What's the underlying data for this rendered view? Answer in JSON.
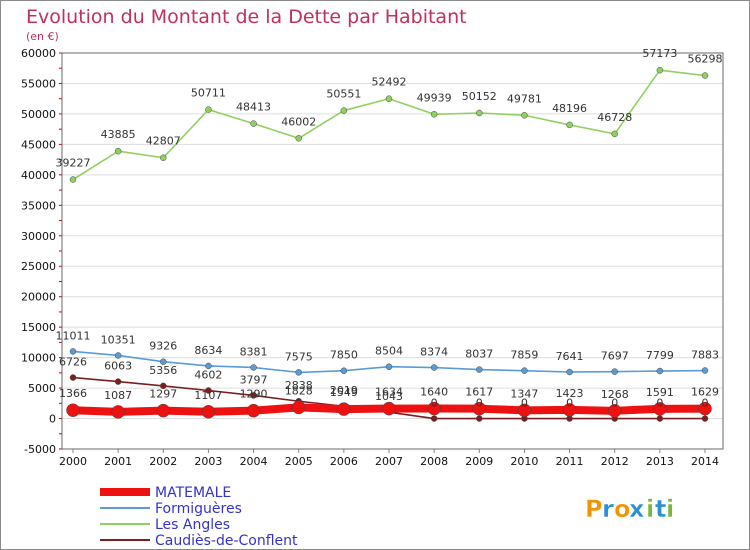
{
  "header": {
    "title": "Evolution du Montant de la Dette par Habitant",
    "subtitle": "(en €)"
  },
  "logo": {
    "text": "Proxiti",
    "letters": [
      "P",
      "r",
      "o",
      "x",
      "i",
      "t",
      "i"
    ],
    "colors": [
      "#f29400",
      "#2a8fd6",
      "#f29400",
      "#2a8fd6",
      "#78b83c",
      "#2a8fd6",
      "#78b83c"
    ]
  },
  "colors": {
    "frame": "#6a6a6a",
    "grid": "#dddddd",
    "tickmark": "#cc0000",
    "plot_bg": "#ffffff"
  },
  "chart_data": {
    "type": "line",
    "title": "Evolution du Montant de la Dette par Habitant",
    "subtitle": "(en €)",
    "x": [
      2000,
      2001,
      2002,
      2003,
      2004,
      2005,
      2006,
      2007,
      2008,
      2009,
      2010,
      2011,
      2012,
      2013,
      2014
    ],
    "ylim": [
      -5000,
      60000
    ],
    "yticks": [
      -5000,
      0,
      5000,
      10000,
      15000,
      20000,
      25000,
      30000,
      35000,
      40000,
      45000,
      50000,
      55000,
      60000
    ],
    "grid": true,
    "legend_position": "bottom-left",
    "series": [
      {
        "name": "Les Angles",
        "color": "#90d060",
        "values": [
          39227,
          43885,
          42807,
          50711,
          48413,
          46002,
          50551,
          52492,
          49939,
          50152,
          49781,
          48196,
          46728,
          57173,
          56298
        ],
        "labels": [
          "39227",
          "43885",
          "42807",
          "50711",
          "48413",
          "46002",
          "50551",
          "52492",
          "49939",
          "50152",
          "49781",
          "48196",
          "46728",
          "57173",
          "56298"
        ]
      },
      {
        "name": "Formiguères",
        "color": "#5b9bd5",
        "values": [
          11011,
          10351,
          9326,
          8634,
          8381,
          7575,
          7850,
          8504,
          8374,
          8037,
          7859,
          7641,
          7697,
          7799,
          7883
        ],
        "labels": [
          "11011",
          "10351",
          "9326",
          "8634",
          "8381",
          "7575",
          "7850",
          "8504",
          "8374",
          "8037",
          "7859",
          "7641",
          "7697",
          "7799",
          "7883"
        ]
      },
      {
        "name": "Caudiès-de-Conflent",
        "color": "#7a1f1f",
        "values": [
          6726,
          6063,
          5356,
          4602,
          3797,
          2838,
          2019,
          1043,
          0,
          0,
          0,
          0,
          0,
          0,
          0
        ],
        "labels": [
          "6726",
          "6063",
          "5356",
          "4602",
          "3797",
          "2838",
          "2019",
          "1043",
          "0",
          "0",
          "0",
          "0",
          "0",
          "0",
          "0"
        ]
      },
      {
        "name": "MATEMALE",
        "color": "#ee1111",
        "values": [
          1366,
          1087,
          1297,
          1107,
          1290,
          1828,
          1549,
          1634,
          1640,
          1617,
          1347,
          1423,
          1268,
          1591,
          1629
        ],
        "labels": [
          "1366",
          "1087",
          "1297",
          "1107",
          "1290",
          "1828",
          "1549",
          "1634",
          "1640",
          "1617",
          "1347",
          "1423",
          "1268",
          "1591",
          "1629"
        ]
      }
    ]
  }
}
